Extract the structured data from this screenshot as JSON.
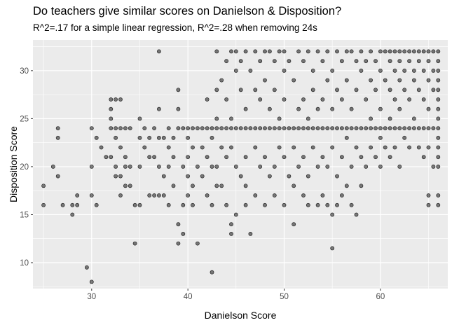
{
  "chart_data": {
    "type": "scatter",
    "title": "Do teachers give similar scores on Danielson & Disposition?",
    "subtitle": "R^2=.17 for a simple linear regression, R^2=.28 when removing 24s",
    "xlabel": "Danielson Score",
    "ylabel": "Disposition Score",
    "xlim": [
      23.9,
      67.0
    ],
    "ylim": [
      7.3,
      33.2
    ],
    "x_ticks": [
      30,
      40,
      50,
      60
    ],
    "y_ticks": [
      10,
      15,
      20,
      25,
      30
    ],
    "grid": true,
    "point_color": "#000000",
    "point_opacity": 0.5,
    "panel_background": "#ebebeb",
    "points": [
      [
        25,
        18
      ],
      [
        25,
        16
      ],
      [
        26,
        20
      ],
      [
        26.5,
        24
      ],
      [
        26.5,
        23
      ],
      [
        26.5,
        19
      ],
      [
        27,
        16
      ],
      [
        28,
        16
      ],
      [
        28,
        15
      ],
      [
        28.5,
        17
      ],
      [
        28.5,
        16
      ],
      [
        29.5,
        9.5
      ],
      [
        30,
        8
      ],
      [
        30,
        24
      ],
      [
        30,
        20
      ],
      [
        30,
        17
      ],
      [
        30.5,
        16
      ],
      [
        30.5,
        23
      ],
      [
        31,
        22
      ],
      [
        31.5,
        21
      ],
      [
        32,
        27
      ],
      [
        32,
        26
      ],
      [
        32,
        25
      ],
      [
        32,
        24
      ],
      [
        32,
        21
      ],
      [
        32.5,
        27
      ],
      [
        32.5,
        24
      ],
      [
        32.5,
        23
      ],
      [
        32.5,
        20
      ],
      [
        32.5,
        19
      ],
      [
        33,
        27
      ],
      [
        33,
        24
      ],
      [
        33,
        22
      ],
      [
        33,
        19
      ],
      [
        33,
        17
      ],
      [
        33.5,
        24
      ],
      [
        33.5,
        21
      ],
      [
        33.5,
        20
      ],
      [
        33.5,
        18
      ],
      [
        34,
        24
      ],
      [
        34,
        20
      ],
      [
        34,
        18
      ],
      [
        34.5,
        16
      ],
      [
        34.5,
        12
      ],
      [
        35,
        25
      ],
      [
        35,
        23
      ],
      [
        35,
        20
      ],
      [
        35,
        16
      ],
      [
        35.5,
        24
      ],
      [
        35.5,
        22
      ],
      [
        36,
        23
      ],
      [
        36,
        21
      ],
      [
        36,
        17
      ],
      [
        36.5,
        24
      ],
      [
        36.5,
        21
      ],
      [
        36.5,
        17
      ],
      [
        37,
        32
      ],
      [
        37,
        26
      ],
      [
        37,
        23
      ],
      [
        37,
        20
      ],
      [
        37,
        17
      ],
      [
        37.5,
        23
      ],
      [
        37.5,
        19
      ],
      [
        37.5,
        17
      ],
      [
        38,
        24
      ],
      [
        38,
        22
      ],
      [
        38,
        20
      ],
      [
        38,
        16
      ],
      [
        38.5,
        23
      ],
      [
        38.5,
        21
      ],
      [
        38.5,
        18
      ],
      [
        39,
        28
      ],
      [
        39,
        26
      ],
      [
        39,
        24
      ],
      [
        39,
        14
      ],
      [
        39,
        12
      ],
      [
        39.5,
        24
      ],
      [
        39.5,
        20
      ],
      [
        39.5,
        16
      ],
      [
        39.5,
        13
      ],
      [
        40,
        24
      ],
      [
        40,
        23
      ],
      [
        40,
        21
      ],
      [
        40,
        19
      ],
      [
        40,
        17
      ],
      [
        40.5,
        24
      ],
      [
        40.5,
        22
      ],
      [
        40.5,
        18
      ],
      [
        40.5,
        16
      ],
      [
        41,
        24
      ],
      [
        41,
        20
      ],
      [
        41,
        12
      ],
      [
        41.5,
        24
      ],
      [
        41.5,
        22
      ],
      [
        41.5,
        19
      ],
      [
        42,
        27
      ],
      [
        42,
        24
      ],
      [
        42,
        21
      ],
      [
        42,
        17
      ],
      [
        42.5,
        24
      ],
      [
        42.5,
        23
      ],
      [
        42.5,
        20
      ],
      [
        42.5,
        16
      ],
      [
        42.5,
        9
      ],
      [
        43,
        32
      ],
      [
        43,
        28
      ],
      [
        43,
        25
      ],
      [
        43,
        24
      ],
      [
        43,
        20
      ],
      [
        43,
        18
      ],
      [
        43.5,
        29
      ],
      [
        43.5,
        24
      ],
      [
        43.5,
        22
      ],
      [
        43.5,
        18
      ],
      [
        44,
        31
      ],
      [
        44,
        27
      ],
      [
        44,
        24
      ],
      [
        44,
        21
      ],
      [
        44,
        16
      ],
      [
        44.5,
        32
      ],
      [
        44.5,
        25
      ],
      [
        44.5,
        24
      ],
      [
        44.5,
        22
      ],
      [
        44.5,
        14
      ],
      [
        44.5,
        13
      ],
      [
        45,
        32
      ],
      [
        45,
        30
      ],
      [
        45,
        24
      ],
      [
        45,
        20
      ],
      [
        45,
        15
      ],
      [
        45.5,
        31
      ],
      [
        45.5,
        28
      ],
      [
        45.5,
        24
      ],
      [
        45.5,
        19
      ],
      [
        46,
        32
      ],
      [
        46,
        26
      ],
      [
        46,
        24
      ],
      [
        46,
        21
      ],
      [
        46,
        18
      ],
      [
        46,
        16
      ],
      [
        46.5,
        30
      ],
      [
        46.5,
        24
      ],
      [
        46.5,
        13
      ],
      [
        47,
        32
      ],
      [
        47,
        28
      ],
      [
        47,
        24
      ],
      [
        47,
        22
      ],
      [
        47,
        17
      ],
      [
        47.5,
        31
      ],
      [
        47.5,
        27
      ],
      [
        47.5,
        24
      ],
      [
        47.5,
        20
      ],
      [
        48,
        32
      ],
      [
        48,
        29
      ],
      [
        48,
        24
      ],
      [
        48,
        21
      ],
      [
        48,
        16
      ],
      [
        48.5,
        32
      ],
      [
        48.5,
        26
      ],
      [
        48.5,
        24
      ],
      [
        48.5,
        19
      ],
      [
        49,
        31
      ],
      [
        49,
        28
      ],
      [
        49,
        24
      ],
      [
        49,
        20
      ],
      [
        49,
        17
      ],
      [
        49.5,
        32
      ],
      [
        49.5,
        25
      ],
      [
        49.5,
        24
      ],
      [
        49.5,
        22
      ],
      [
        50,
        32
      ],
      [
        50,
        30
      ],
      [
        50,
        27
      ],
      [
        50,
        24
      ],
      [
        50,
        21
      ],
      [
        50,
        16
      ],
      [
        50.5,
        31
      ],
      [
        50.5,
        24
      ],
      [
        50.5,
        19
      ],
      [
        51,
        29
      ],
      [
        51,
        24
      ],
      [
        51,
        22
      ],
      [
        51,
        18
      ],
      [
        51,
        14
      ],
      [
        51.5,
        32
      ],
      [
        51.5,
        26
      ],
      [
        51.5,
        24
      ],
      [
        51.5,
        20
      ],
      [
        52,
        31
      ],
      [
        52,
        27
      ],
      [
        52,
        24
      ],
      [
        52,
        21
      ],
      [
        52,
        17
      ],
      [
        52.5,
        32
      ],
      [
        52.5,
        25
      ],
      [
        52.5,
        24
      ],
      [
        52.5,
        19
      ],
      [
        52.5,
        16
      ],
      [
        53,
        30
      ],
      [
        53,
        28
      ],
      [
        53,
        24
      ],
      [
        53,
        22
      ],
      [
        53.5,
        32
      ],
      [
        53.5,
        26
      ],
      [
        53.5,
        24
      ],
      [
        53.5,
        20
      ],
      [
        53.5,
        16
      ],
      [
        54,
        31
      ],
      [
        54,
        27
      ],
      [
        54,
        24
      ],
      [
        54,
        21
      ],
      [
        54,
        17
      ],
      [
        54.5,
        32
      ],
      [
        54.5,
        29
      ],
      [
        54.5,
        24
      ],
      [
        54.5,
        20
      ],
      [
        54.5,
        16
      ],
      [
        55,
        30
      ],
      [
        55,
        26
      ],
      [
        55,
        24
      ],
      [
        55,
        22
      ],
      [
        55,
        15
      ],
      [
        55,
        11.5
      ],
      [
        55.5,
        32
      ],
      [
        55.5,
        28
      ],
      [
        55.5,
        24
      ],
      [
        55.5,
        19
      ],
      [
        55.5,
        16
      ],
      [
        56,
        31
      ],
      [
        56,
        27
      ],
      [
        56,
        24
      ],
      [
        56,
        21
      ],
      [
        56,
        17
      ],
      [
        56.5,
        32
      ],
      [
        56.5,
        29
      ],
      [
        56.5,
        24
      ],
      [
        56.5,
        23
      ],
      [
        56.5,
        18
      ],
      [
        57,
        32
      ],
      [
        57,
        26
      ],
      [
        57,
        24
      ],
      [
        57,
        20
      ],
      [
        57,
        16
      ],
      [
        57.5,
        31
      ],
      [
        57.5,
        28
      ],
      [
        57.5,
        24
      ],
      [
        57.5,
        22
      ],
      [
        57.5,
        15
      ],
      [
        58,
        32
      ],
      [
        58,
        30
      ],
      [
        58,
        24
      ],
      [
        58,
        21
      ],
      [
        58,
        18
      ],
      [
        58.5,
        31
      ],
      [
        58.5,
        27
      ],
      [
        58.5,
        24
      ],
      [
        58.5,
        20
      ],
      [
        59,
        32
      ],
      [
        59,
        29
      ],
      [
        59,
        25
      ],
      [
        59,
        24
      ],
      [
        59,
        22
      ],
      [
        59.5,
        31
      ],
      [
        59.5,
        28
      ],
      [
        59.5,
        24
      ],
      [
        59.5,
        21
      ],
      [
        60,
        32
      ],
      [
        60,
        30
      ],
      [
        60,
        26
      ],
      [
        60,
        24
      ],
      [
        60,
        23
      ],
      [
        60,
        20
      ],
      [
        60.5,
        32
      ],
      [
        60.5,
        29
      ],
      [
        60.5,
        24
      ],
      [
        60.5,
        22
      ],
      [
        61,
        32
      ],
      [
        61,
        31
      ],
      [
        61,
        28
      ],
      [
        61,
        25
      ],
      [
        61,
        24
      ],
      [
        61,
        21
      ],
      [
        61.5,
        32
      ],
      [
        61.5,
        30
      ],
      [
        61.5,
        27
      ],
      [
        61.5,
        24
      ],
      [
        61.5,
        22
      ],
      [
        62,
        32
      ],
      [
        62,
        31
      ],
      [
        62,
        29
      ],
      [
        62,
        26
      ],
      [
        62,
        24
      ],
      [
        62,
        20
      ],
      [
        62.5,
        32
      ],
      [
        62.5,
        30
      ],
      [
        62.5,
        28
      ],
      [
        62.5,
        24
      ],
      [
        62.5,
        23
      ],
      [
        63,
        32
      ],
      [
        63,
        31
      ],
      [
        63,
        27
      ],
      [
        63,
        24
      ],
      [
        63,
        22
      ],
      [
        63.5,
        32
      ],
      [
        63.5,
        30
      ],
      [
        63.5,
        29
      ],
      [
        63.5,
        25
      ],
      [
        63.5,
        24
      ],
      [
        64,
        32
      ],
      [
        64,
        31
      ],
      [
        64,
        28
      ],
      [
        64,
        24
      ],
      [
        64,
        22
      ],
      [
        64.5,
        32
      ],
      [
        64.5,
        30
      ],
      [
        64.5,
        27
      ],
      [
        64.5,
        24
      ],
      [
        64.5,
        21
      ],
      [
        65,
        32
      ],
      [
        65,
        31
      ],
      [
        65,
        29
      ],
      [
        65,
        26
      ],
      [
        65,
        24
      ],
      [
        65,
        22
      ],
      [
        65,
        17
      ],
      [
        65,
        16
      ],
      [
        65.5,
        32
      ],
      [
        65.5,
        30
      ],
      [
        65.5,
        28
      ],
      [
        65.5,
        24
      ],
      [
        65.5,
        20
      ],
      [
        66,
        32
      ],
      [
        66,
        31
      ],
      [
        66,
        30
      ],
      [
        66,
        29
      ],
      [
        66,
        28
      ],
      [
        66,
        27
      ],
      [
        66,
        26
      ],
      [
        66,
        25
      ],
      [
        66,
        24
      ],
      [
        66,
        23
      ],
      [
        66,
        22
      ],
      [
        66,
        21
      ],
      [
        66,
        20
      ],
      [
        66,
        17
      ],
      [
        66,
        16
      ]
    ]
  }
}
